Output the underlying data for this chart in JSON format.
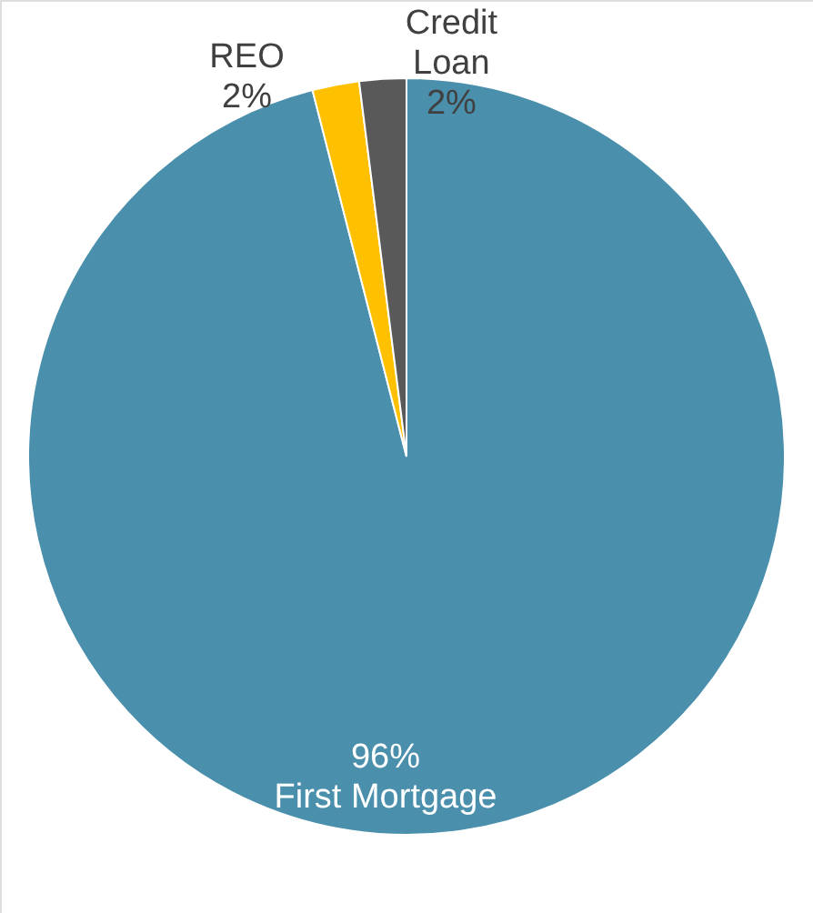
{
  "chart_data": {
    "type": "pie",
    "categories": [
      "First Mortgage",
      "REO",
      "Credit Loan"
    ],
    "values": [
      96,
      2,
      2
    ],
    "colors": [
      "#4a8fab",
      "#ffc000",
      "#595959"
    ],
    "value_labels": [
      "96%",
      "2%",
      "2%"
    ]
  }
}
